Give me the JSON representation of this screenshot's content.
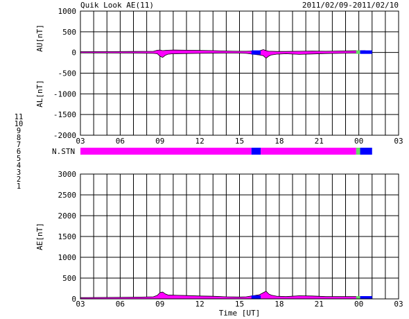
{
  "header": {
    "title": "Quik Look AE(11)",
    "date_range": "2011/02/09-2011/02/10"
  },
  "stations_label": "N.STN",
  "legend": {
    "items": [
      {
        "label": "11",
        "color": "#00e5e5"
      },
      {
        "label": "10",
        "color": "#ff00ff"
      },
      {
        "label": "9",
        "color": "#0000ff"
      },
      {
        "label": "8",
        "color": "#ffff66"
      },
      {
        "label": "7",
        "color": "#66dd66"
      },
      {
        "label": "6",
        "color": "#ff0000"
      },
      {
        "label": "5",
        "color": "#bbbbbb"
      },
      {
        "label": "4",
        "color": "#66aaaa"
      },
      {
        "label": "3",
        "color": "#00aaaa"
      },
      {
        "label": "2",
        "color": "#cc0066"
      },
      {
        "label": "1",
        "color": "#0000cc"
      }
    ]
  },
  "chart_data": [
    {
      "type": "area",
      "title": "Quik Look AE(11)",
      "ylabel_upper": "AU[nT]",
      "ylabel_lower": "AL[nT]",
      "xlabel": "",
      "ylim": [
        -2000,
        1000
      ],
      "yticks": [
        1000,
        500,
        0,
        -500,
        -1000,
        -1500,
        -2000
      ],
      "xlim_hours": [
        0,
        24
      ],
      "xtick_labels": [
        "03",
        "06",
        "09",
        "12",
        "15",
        "18",
        "21",
        "00",
        "03"
      ],
      "grid": true,
      "series": [
        {
          "color": "#ff00ff",
          "x_hours": [
            0,
            2,
            4,
            5.5,
            5.8,
            6,
            6.2,
            6.4,
            6.6,
            7,
            8,
            9,
            10,
            11,
            12,
            12.5,
            13,
            13.5,
            13.8,
            14,
            14.2,
            14.4,
            14.8,
            15.5,
            16.5,
            17.5,
            18.5,
            19.5,
            20.5,
            21.5
          ],
          "au": [
            20,
            22,
            25,
            28,
            55,
            60,
            45,
            50,
            55,
            60,
            55,
            50,
            45,
            35,
            30,
            30,
            35,
            40,
            70,
            45,
            30,
            30,
            25,
            25,
            30,
            35,
            30,
            35,
            40,
            45
          ],
          "al": [
            -10,
            -12,
            -15,
            -20,
            -30,
            -90,
            -120,
            -70,
            -40,
            -30,
            -25,
            -20,
            -18,
            -15,
            -15,
            -20,
            -40,
            -60,
            -80,
            -140,
            -90,
            -60,
            -40,
            -30,
            -45,
            -35,
            -25,
            -20,
            -15,
            -10
          ]
        }
      ]
    },
    {
      "type": "bar",
      "title": "N.STN",
      "segments": [
        {
          "start_hours": 0,
          "end_hours": 12.9,
          "color": "#ff00ff"
        },
        {
          "start_hours": 12.9,
          "end_hours": 13.6,
          "color": "#0000ff"
        },
        {
          "start_hours": 13.6,
          "end_hours": 20.8,
          "color": "#ff00ff"
        },
        {
          "start_hours": 20.8,
          "end_hours": 21.1,
          "color": "#66dd66"
        },
        {
          "start_hours": 21.1,
          "end_hours": 22.0,
          "color": "#0000ff"
        }
      ]
    },
    {
      "type": "area",
      "ylabel": "AE[nT]",
      "xlabel": "Time [UT]",
      "ylim": [
        0,
        3000
      ],
      "yticks": [
        3000,
        2500,
        2000,
        1500,
        1000,
        500,
        0
      ],
      "xlim_hours": [
        0,
        24
      ],
      "xtick_labels": [
        "03",
        "06",
        "09",
        "12",
        "15",
        "18",
        "21",
        "00",
        "03"
      ],
      "grid": true,
      "series": [
        {
          "color": "#ff00ff",
          "x_hours": [
            0,
            2,
            4,
            5.5,
            5.8,
            6,
            6.2,
            6.4,
            6.6,
            7,
            8,
            9,
            10,
            11,
            12,
            12.5,
            13,
            13.5,
            13.8,
            14,
            14.2,
            14.4,
            14.8,
            15.5,
            16.5,
            17.5,
            18.5,
            19.5,
            20.5,
            21.5
          ],
          "ae": [
            30,
            35,
            40,
            50,
            85,
            150,
            165,
            120,
            95,
            90,
            80,
            70,
            63,
            50,
            45,
            50,
            75,
            100,
            150,
            185,
            120,
            90,
            65,
            55,
            75,
            70,
            55,
            55,
            55,
            55
          ]
        }
      ]
    }
  ]
}
